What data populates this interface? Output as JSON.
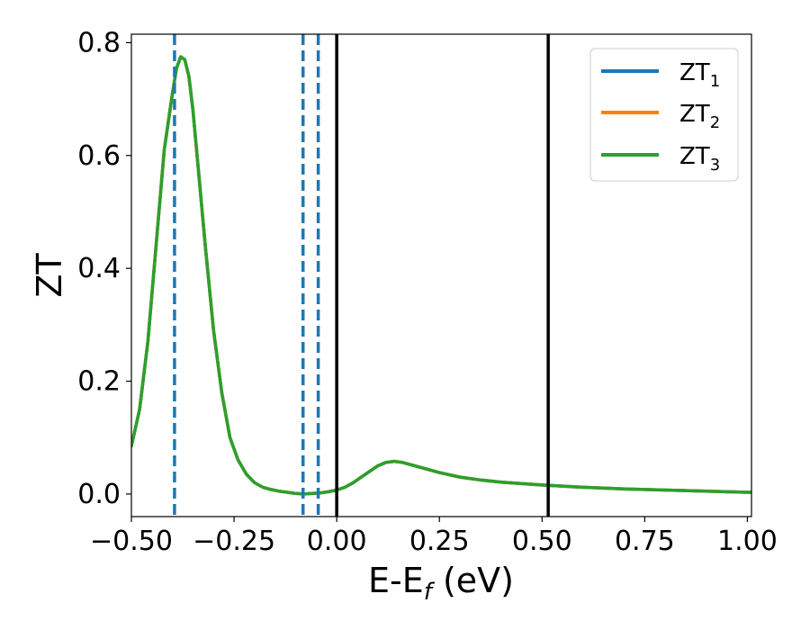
{
  "chart_data": {
    "type": "line",
    "title": "",
    "xlabel": {
      "main": "E-E",
      "sub": "f",
      "suffix": " (eV)"
    },
    "ylabel": "ZT",
    "xlim": [
      -0.5,
      1.01
    ],
    "ylim": [
      -0.04,
      0.815
    ],
    "x_ticks": [
      -0.5,
      -0.25,
      0.0,
      0.25,
      0.5,
      0.75,
      1.0
    ],
    "x_tick_labels": [
      "−0.50",
      "−0.25",
      "0.00",
      "0.25",
      "0.50",
      "0.75",
      "1.00"
    ],
    "y_ticks": [
      0.0,
      0.2,
      0.4,
      0.6,
      0.8
    ],
    "y_tick_labels": [
      "0.0",
      "0.2",
      "0.4",
      "0.6",
      "0.8"
    ],
    "grid": false,
    "legend_position": "top-right",
    "series": [
      {
        "name": {
          "main": "ZT",
          "sub": "1"
        },
        "color": "#1f77b4",
        "x": [
          -0.5,
          -0.48,
          -0.46,
          -0.44,
          -0.42,
          -0.4,
          -0.39,
          -0.38,
          -0.37,
          -0.36,
          -0.35,
          -0.34,
          -0.32,
          -0.3,
          -0.28,
          -0.26,
          -0.24,
          -0.22,
          -0.2,
          -0.18,
          -0.16,
          -0.14,
          -0.12,
          -0.1,
          -0.08,
          -0.06,
          -0.04,
          -0.02,
          0.0,
          0.02,
          0.04,
          0.06,
          0.08,
          0.1,
          0.12,
          0.14,
          0.16,
          0.18,
          0.2,
          0.25,
          0.3,
          0.35,
          0.4,
          0.5,
          0.6,
          0.7,
          0.8,
          0.9,
          1.0,
          1.01
        ],
        "y": [
          0.085,
          0.15,
          0.27,
          0.44,
          0.61,
          0.71,
          0.755,
          0.775,
          0.77,
          0.74,
          0.68,
          0.6,
          0.44,
          0.29,
          0.18,
          0.1,
          0.06,
          0.035,
          0.02,
          0.012,
          0.008,
          0.005,
          0.003,
          0.001,
          0.0,
          0.001,
          0.002,
          0.004,
          0.007,
          0.012,
          0.02,
          0.03,
          0.04,
          0.05,
          0.056,
          0.058,
          0.056,
          0.052,
          0.048,
          0.038,
          0.03,
          0.025,
          0.021,
          0.016,
          0.012,
          0.009,
          0.007,
          0.005,
          0.003,
          0.003
        ]
      },
      {
        "name": {
          "main": "ZT",
          "sub": "2"
        },
        "color": "#ff7f0e",
        "x": [
          -0.5,
          -0.48,
          -0.46,
          -0.44,
          -0.42,
          -0.4,
          -0.39,
          -0.38,
          -0.37,
          -0.36,
          -0.35,
          -0.34,
          -0.32,
          -0.3,
          -0.28,
          -0.26,
          -0.24,
          -0.22,
          -0.2,
          -0.18,
          -0.16,
          -0.14,
          -0.12,
          -0.1,
          -0.08,
          -0.06,
          -0.04,
          -0.02,
          0.0,
          0.02,
          0.04,
          0.06,
          0.08,
          0.1,
          0.12,
          0.14,
          0.16,
          0.18,
          0.2,
          0.25,
          0.3,
          0.35,
          0.4,
          0.5,
          0.6,
          0.7,
          0.8,
          0.9,
          1.0,
          1.01
        ],
        "y": [
          0.085,
          0.15,
          0.27,
          0.44,
          0.61,
          0.71,
          0.755,
          0.775,
          0.77,
          0.74,
          0.68,
          0.6,
          0.44,
          0.29,
          0.18,
          0.1,
          0.06,
          0.035,
          0.02,
          0.012,
          0.008,
          0.005,
          0.003,
          0.001,
          0.0,
          0.001,
          0.002,
          0.004,
          0.007,
          0.012,
          0.02,
          0.03,
          0.04,
          0.05,
          0.056,
          0.058,
          0.056,
          0.052,
          0.048,
          0.038,
          0.03,
          0.025,
          0.021,
          0.016,
          0.012,
          0.009,
          0.007,
          0.005,
          0.003,
          0.003
        ]
      },
      {
        "name": {
          "main": "ZT",
          "sub": "3"
        },
        "color": "#2ca02c",
        "x": [
          -0.5,
          -0.48,
          -0.46,
          -0.44,
          -0.42,
          -0.4,
          -0.39,
          -0.38,
          -0.37,
          -0.36,
          -0.35,
          -0.34,
          -0.32,
          -0.3,
          -0.28,
          -0.26,
          -0.24,
          -0.22,
          -0.2,
          -0.18,
          -0.16,
          -0.14,
          -0.12,
          -0.1,
          -0.08,
          -0.06,
          -0.04,
          -0.02,
          0.0,
          0.02,
          0.04,
          0.06,
          0.08,
          0.1,
          0.12,
          0.14,
          0.16,
          0.18,
          0.2,
          0.25,
          0.3,
          0.35,
          0.4,
          0.5,
          0.6,
          0.7,
          0.8,
          0.9,
          1.0,
          1.01
        ],
        "y": [
          0.085,
          0.15,
          0.27,
          0.44,
          0.61,
          0.71,
          0.755,
          0.775,
          0.77,
          0.74,
          0.68,
          0.6,
          0.44,
          0.29,
          0.18,
          0.1,
          0.06,
          0.035,
          0.02,
          0.012,
          0.008,
          0.005,
          0.003,
          0.001,
          0.0,
          0.001,
          0.002,
          0.004,
          0.007,
          0.012,
          0.02,
          0.03,
          0.04,
          0.05,
          0.056,
          0.058,
          0.056,
          0.052,
          0.048,
          0.038,
          0.03,
          0.025,
          0.021,
          0.016,
          0.012,
          0.009,
          0.007,
          0.005,
          0.003,
          0.003
        ]
      }
    ],
    "vertical_lines": [
      {
        "x": -0.395,
        "style": "dashed",
        "color": "#1f77b4"
      },
      {
        "x": -0.082,
        "style": "dashed",
        "color": "#1f77b4"
      },
      {
        "x": -0.045,
        "style": "dashed",
        "color": "#1f77b4"
      },
      {
        "x": 0.0,
        "style": "solid",
        "color": "#000000"
      },
      {
        "x": 0.515,
        "style": "solid",
        "color": "#000000"
      }
    ]
  }
}
